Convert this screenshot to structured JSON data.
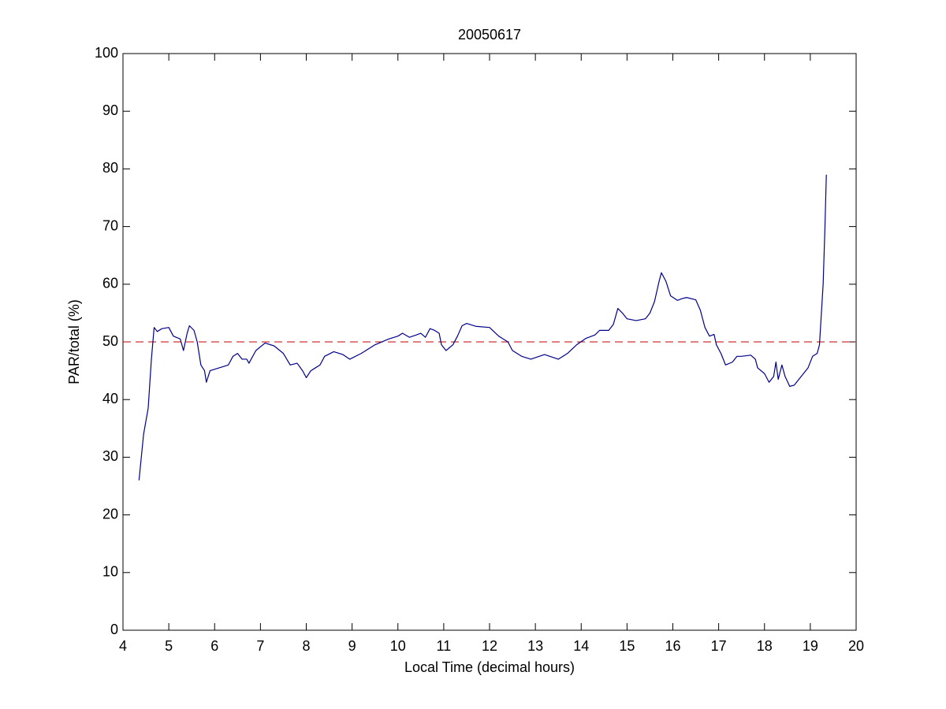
{
  "chart_data": {
    "type": "line",
    "title": "20050617",
    "x_label": "Local Time (decimal hours)",
    "y_label": "PAR/total (%)",
    "xlim": [
      4,
      20
    ],
    "xticks": [
      4,
      5,
      6,
      7,
      8,
      9,
      10,
      11,
      12,
      13,
      14,
      15,
      16,
      17,
      18,
      19,
      20
    ],
    "ylim": [
      0,
      100
    ],
    "yticks": [
      0,
      10,
      20,
      30,
      40,
      50,
      60,
      70,
      80,
      90,
      100
    ],
    "grid": false,
    "reference_line": {
      "value": 50,
      "color": "#c00000",
      "style": "dashed"
    },
    "series": [
      {
        "color": "#00008b",
        "x": [
          4.35,
          4.45,
          4.55,
          4.62,
          4.68,
          4.75,
          4.85,
          5.0,
          5.1,
          5.25,
          5.32,
          5.4,
          5.45,
          5.55,
          5.62,
          5.7,
          5.78,
          5.82,
          5.9,
          6.1,
          6.3,
          6.4,
          6.5,
          6.6,
          6.7,
          6.75,
          6.9,
          7.1,
          7.3,
          7.5,
          7.65,
          7.8,
          7.92,
          8.0,
          8.1,
          8.2,
          8.3,
          8.4,
          8.6,
          8.8,
          8.95,
          9.2,
          9.5,
          9.8,
          10.0,
          10.1,
          10.25,
          10.4,
          10.5,
          10.6,
          10.7,
          10.8,
          10.9,
          10.95,
          11.05,
          11.2,
          11.3,
          11.4,
          11.5,
          11.7,
          12.0,
          12.2,
          12.4,
          12.5,
          12.7,
          12.9,
          13.2,
          13.5,
          13.7,
          13.9,
          14.1,
          14.3,
          14.4,
          14.6,
          14.7,
          14.8,
          14.9,
          15.0,
          15.2,
          15.4,
          15.5,
          15.6,
          15.7,
          15.75,
          15.85,
          15.95,
          16.1,
          16.2,
          16.3,
          16.5,
          16.6,
          16.7,
          16.8,
          16.9,
          16.95,
          17.05,
          17.15,
          17.3,
          17.4,
          17.5,
          17.7,
          17.8,
          17.85,
          18.0,
          18.1,
          18.2,
          18.25,
          18.3,
          18.38,
          18.45,
          18.55,
          18.65,
          18.8,
          18.95,
          19.05,
          19.15,
          19.2,
          19.28,
          19.32,
          19.35
        ],
        "values": [
          26,
          34,
          38.5,
          47,
          52.5,
          51.8,
          52.3,
          52.5,
          51,
          50.5,
          48.5,
          51.5,
          52.8,
          52,
          50,
          46,
          45,
          43,
          45,
          45.5,
          46,
          47.5,
          48,
          47,
          47,
          46.3,
          48.5,
          49.8,
          49.3,
          48,
          46,
          46.3,
          45,
          43.8,
          45,
          45.5,
          46,
          47.5,
          48.3,
          47.8,
          47,
          48,
          49.5,
          50.5,
          51,
          51.5,
          50.8,
          51.2,
          51.5,
          50.8,
          52.3,
          52,
          51.5,
          49.5,
          48.5,
          49.5,
          51,
          52.8,
          53.2,
          52.7,
          52.5,
          51,
          50,
          48.5,
          47.5,
          47,
          47.8,
          47,
          48,
          49.5,
          50.6,
          51.2,
          52,
          52,
          53,
          55.8,
          55,
          54,
          53.7,
          54,
          55,
          57,
          60.5,
          62,
          60.5,
          58,
          57.2,
          57.5,
          57.7,
          57.3,
          55.5,
          52.5,
          51,
          51.3,
          49.5,
          48,
          46,
          46.5,
          47.5,
          47.5,
          47.7,
          47,
          45.5,
          44.5,
          43,
          44,
          46.5,
          43.5,
          46,
          44,
          42.3,
          42.5,
          44,
          45.5,
          47.5,
          48,
          49.5,
          60,
          70,
          79
        ]
      }
    ]
  }
}
